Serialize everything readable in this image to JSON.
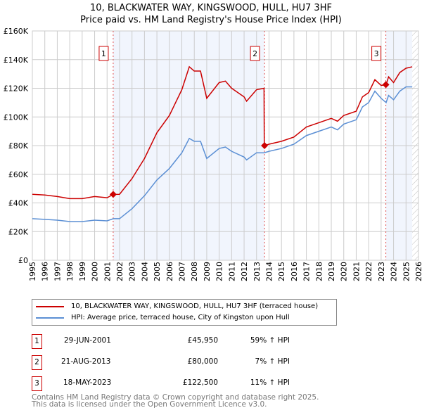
{
  "chart_data": {
    "type": "line",
    "title": "10, BLACKWATER WAY, KINGSWOOD, HULL, HU7 3HF",
    "subtitle": "Price paid vs. HM Land Registry's House Price Index (HPI)",
    "xlim": [
      1995,
      2026
    ],
    "ylim": [
      0,
      160000
    ],
    "x_ticks": [
      "1995",
      "1996",
      "1997",
      "1998",
      "1999",
      "2000",
      "2001",
      "2002",
      "2003",
      "2004",
      "2005",
      "2006",
      "2007",
      "2008",
      "2009",
      "2010",
      "2011",
      "2012",
      "2013",
      "2014",
      "2015",
      "2016",
      "2017",
      "2018",
      "2019",
      "2020",
      "2021",
      "2022",
      "2023",
      "2024",
      "2025",
      "2026"
    ],
    "y_ticks": [
      {
        "v": 0,
        "l": "£0"
      },
      {
        "v": 20000,
        "l": "£20K"
      },
      {
        "v": 40000,
        "l": "£40K"
      },
      {
        "v": 60000,
        "l": "£60K"
      },
      {
        "v": 80000,
        "l": "£80K"
      },
      {
        "v": 100000,
        "l": "£100K"
      },
      {
        "v": 120000,
        "l": "£120K"
      },
      {
        "v": 140000,
        "l": "£140K"
      },
      {
        "v": 160000,
        "l": "£160K"
      }
    ],
    "series": [
      {
        "name": "10, BLACKWATER WAY, KINGSWOOD, HULL, HU7 3HF (terraced house)",
        "color": "#cc0000",
        "x": [
          1995,
          1996,
          1997,
          1998,
          1999,
          2000,
          2001,
          2001.5,
          2002,
          2003,
          2004,
          2005,
          2006,
          2007,
          2007.6,
          2008,
          2008.5,
          2009,
          2010,
          2010.5,
          2011,
          2012,
          2012.2,
          2013,
          2013.6,
          2013.62,
          2014,
          2015,
          2016,
          2017,
          2018,
          2019,
          2019.5,
          2020,
          2021,
          2021.5,
          2022,
          2022.5,
          2023,
          2023.4,
          2023.6,
          2024,
          2024.5,
          2025,
          2025.5
        ],
        "y": [
          46000,
          45500,
          44500,
          43000,
          43000,
          44500,
          43600,
          45950,
          46000,
          57000,
          71000,
          89000,
          101000,
          119000,
          135000,
          132000,
          132000,
          113000,
          124000,
          125000,
          120000,
          114000,
          111000,
          119000,
          120000,
          80000,
          81000,
          83000,
          86000,
          93000,
          96000,
          99000,
          97000,
          101000,
          104000,
          114000,
          117000,
          126000,
          122000,
          122500,
          128000,
          124000,
          131000,
          134000,
          135000
        ]
      },
      {
        "name": "HPI: Average price, terraced house, City of Kingston upon Hull",
        "color": "#5b8fd4",
        "x": [
          1995,
          1996,
          1997,
          1998,
          1999,
          2000,
          2001,
          2001.5,
          2002,
          2003,
          2004,
          2005,
          2006,
          2007,
          2007.6,
          2008,
          2008.5,
          2009,
          2010,
          2010.5,
          2011,
          2012,
          2012.2,
          2013,
          2013.6,
          2014,
          2015,
          2016,
          2017,
          2018,
          2019,
          2019.5,
          2020,
          2021,
          2021.5,
          2022,
          2022.5,
          2023,
          2023.4,
          2023.6,
          2024,
          2024.5,
          2025,
          2025.5
        ],
        "y": [
          29000,
          28500,
          28000,
          27000,
          27000,
          28000,
          27500,
          29000,
          29000,
          36000,
          45000,
          56000,
          64000,
          75000,
          85000,
          83000,
          83000,
          71000,
          78000,
          79000,
          76000,
          72000,
          70000,
          75000,
          75000,
          76000,
          78000,
          81000,
          87000,
          90000,
          93000,
          91000,
          95000,
          98000,
          107000,
          110000,
          118000,
          113000,
          110000,
          115000,
          112000,
          118000,
          121000,
          121000
        ]
      }
    ],
    "sales": [
      {
        "id": "1",
        "date": "29-JUN-2001",
        "x": 2001.49,
        "price": "£45,950",
        "value": 45950,
        "hpi": "59% ↑ HPI"
      },
      {
        "id": "2",
        "date": "21-AUG-2013",
        "x": 2013.64,
        "price": "£80,000",
        "value": 80000,
        "hpi": "7% ↑ HPI"
      },
      {
        "id": "3",
        "date": "18-MAY-2023",
        "x": 2023.38,
        "price": "£122,500",
        "value": 122500,
        "hpi": "11% ↑ HPI"
      }
    ],
    "shaded": [
      [
        2001.49,
        2013.64
      ],
      [
        2023.38,
        2025.5
      ]
    ],
    "forecast_start": 2025.5
  },
  "footer": {
    "line1": "Contains HM Land Registry data © Crown copyright and database right 2025.",
    "line2": "This data is licensed under the Open Government Licence v3.0."
  }
}
